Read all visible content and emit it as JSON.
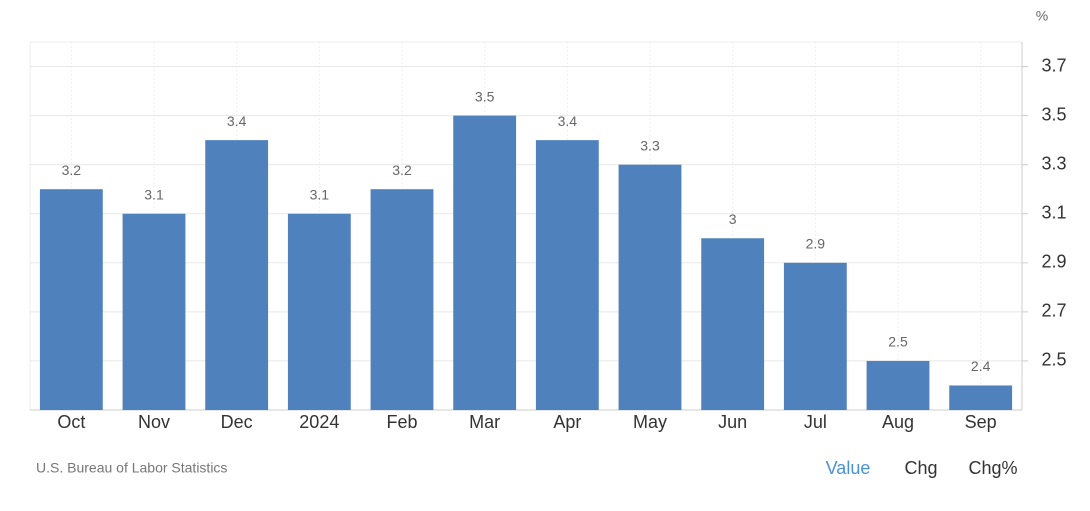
{
  "chart_data": {
    "type": "bar",
    "y_unit": "%",
    "categories": [
      "Oct",
      "Nov",
      "Dec",
      "2024",
      "Feb",
      "Mar",
      "Apr",
      "May",
      "Jun",
      "Jul",
      "Aug",
      "Sep"
    ],
    "values": [
      3.2,
      3.1,
      3.4,
      3.1,
      3.2,
      3.5,
      3.4,
      3.3,
      3,
      2.9,
      2.5,
      2.4
    ],
    "color": "#4f81bd",
    "ylim": [
      2.3,
      3.8
    ],
    "yticks": [
      2.5,
      2.7,
      2.9,
      3.1,
      3.3,
      3.5,
      3.7
    ],
    "grid": true,
    "source": "U.S. Bureau of Labor Statistics"
  },
  "controls": [
    {
      "label": "Value",
      "selected": true
    },
    {
      "label": "Chg",
      "selected": false
    },
    {
      "label": "Chg%",
      "selected": false
    }
  ]
}
